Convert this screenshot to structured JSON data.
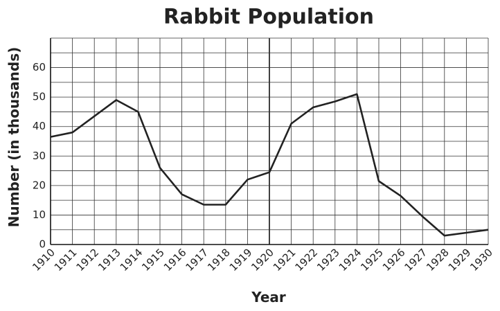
{
  "chart_data": {
    "type": "line",
    "title": "Rabbit Population",
    "xlabel": "Year",
    "ylabel": "Number (in thousands)",
    "xlim": [
      1910,
      1930
    ],
    "ylim": [
      0,
      70
    ],
    "x_ticks": [
      "1910",
      "1911",
      "1912",
      "1913",
      "1914",
      "1915",
      "1916",
      "1917",
      "1918",
      "1919",
      "1920",
      "1921",
      "1922",
      "1923",
      "1924",
      "1925",
      "1926",
      "1927",
      "1928",
      "1929",
      "1930"
    ],
    "y_ticks": [
      "0",
      "10",
      "20",
      "30",
      "40",
      "50",
      "60"
    ],
    "grid": true,
    "series": [
      {
        "x": [
          1910,
          1911,
          1912,
          1913,
          1914,
          1915,
          1916,
          1917,
          1918,
          1919,
          1920,
          1921,
          1922,
          1923,
          1924,
          1925,
          1926,
          1927,
          1928,
          1929,
          1930
        ],
        "values": [
          36.5,
          38,
          43.5,
          49,
          45,
          26,
          17,
          13.5,
          13.5,
          22,
          24.5,
          41,
          46.5,
          48.5,
          51,
          21.5,
          16.5,
          9.5,
          3,
          4,
          5
        ]
      }
    ],
    "colors": {
      "line": "#222222",
      "grid": "#333333"
    }
  }
}
